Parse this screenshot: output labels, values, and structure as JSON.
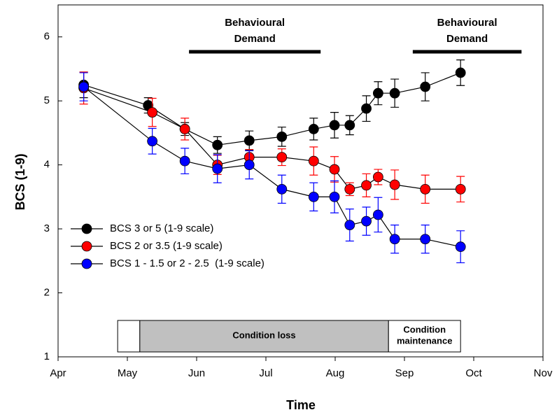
{
  "chart_data": {
    "type": "line",
    "xlabel": "Time",
    "ylabel": "BCS (1-9)",
    "xlim": [
      4,
      11
    ],
    "ylim": [
      1,
      6.5
    ],
    "xticks": [
      {
        "value": 4,
        "label": "Apr"
      },
      {
        "value": 5,
        "label": "May"
      },
      {
        "value": 6,
        "label": "Jun"
      },
      {
        "value": 7,
        "label": "Jul"
      },
      {
        "value": 8,
        "label": "Aug"
      },
      {
        "value": 9,
        "label": "Sep"
      },
      {
        "value": 10,
        "label": "Oct"
      },
      {
        "value": 11,
        "label": "Nov"
      }
    ],
    "yticks": [
      1,
      2,
      3,
      4,
      5,
      6
    ],
    "legend": "center left",
    "series": [
      {
        "name": "BCS 3 or 5 (1-9 scale)",
        "color": "#000000",
        "x": [
          4.37,
          5.3,
          5.83,
          6.3,
          6.76,
          7.23,
          7.69,
          7.99,
          8.21,
          8.45,
          8.62,
          8.86,
          9.3,
          9.81
        ],
        "values": [
          5.25,
          4.93,
          4.56,
          4.31,
          4.38,
          4.44,
          4.56,
          4.62,
          4.62,
          4.88,
          5.12,
          5.12,
          5.22,
          5.44
        ],
        "errors": [
          0.2,
          0.12,
          0.1,
          0.13,
          0.15,
          0.15,
          0.17,
          0.2,
          0.15,
          0.2,
          0.18,
          0.22,
          0.22,
          0.2
        ]
      },
      {
        "name": "BCS 2 or 3.5 (1-9 scale)",
        "color": "#ff0000",
        "x": [
          4.37,
          5.36,
          5.83,
          6.3,
          6.76,
          7.23,
          7.69,
          7.99,
          8.21,
          8.45,
          8.62,
          8.86,
          9.3,
          9.81
        ],
        "values": [
          5.2,
          4.82,
          4.56,
          4.0,
          4.12,
          4.12,
          4.06,
          3.93,
          3.62,
          3.68,
          3.81,
          3.69,
          3.62,
          3.62
        ],
        "errors": [
          0.25,
          0.22,
          0.17,
          0.15,
          0.12,
          0.13,
          0.22,
          0.2,
          0.1,
          0.18,
          0.12,
          0.23,
          0.22,
          0.2
        ]
      },
      {
        "name": "BCS 1 - 1.5 or 2 - 2.5  (1-9 scale)",
        "color": "#0000ff",
        "x": [
          4.37,
          5.36,
          5.83,
          6.3,
          6.76,
          7.23,
          7.69,
          7.99,
          8.21,
          8.45,
          8.62,
          8.86,
          9.3,
          9.81
        ],
        "values": [
          5.22,
          4.37,
          4.06,
          3.94,
          4.0,
          3.62,
          3.5,
          3.5,
          3.06,
          3.12,
          3.22,
          2.84,
          2.84,
          2.72
        ],
        "errors": [
          0.22,
          0.2,
          0.2,
          0.22,
          0.22,
          0.22,
          0.22,
          0.25,
          0.25,
          0.22,
          0.27,
          0.22,
          0.22,
          0.25
        ]
      }
    ],
    "periods": [
      {
        "label": [
          "Behavioural",
          "Demand"
        ],
        "start": 5.89,
        "end": 7.79
      },
      {
        "label": [
          "Behavioural",
          "Demand"
        ],
        "start": 9.12,
        "end": 10.69
      }
    ],
    "phases": [
      {
        "start": 4.86,
        "end": 5.18,
        "color": "#ffffff"
      },
      {
        "start": 5.18,
        "end": 8.77,
        "color": "#c0c0c0",
        "label": [
          "Condition loss"
        ]
      },
      {
        "start": 8.77,
        "end": 9.81,
        "color": "#ffffff",
        "label": [
          "Condition",
          "maintenance"
        ]
      }
    ]
  }
}
